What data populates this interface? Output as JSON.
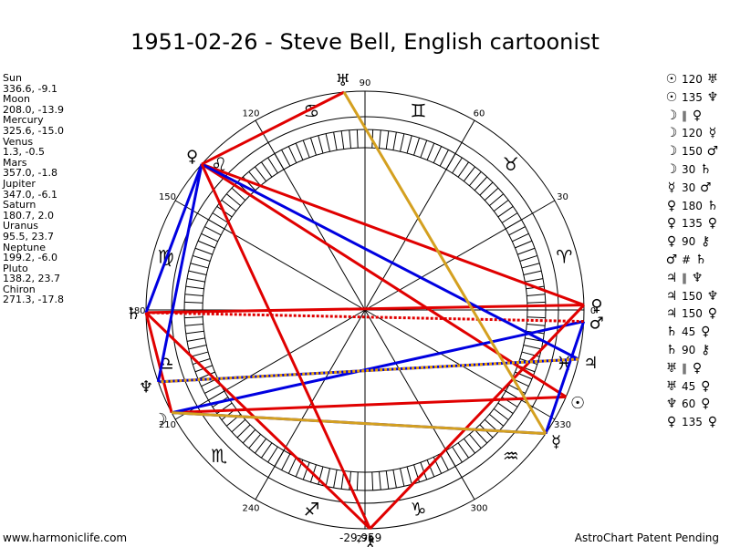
{
  "title": "1951-02-26 - Steve Bell, English cartoonist",
  "planets": [
    {
      "name": "Sun",
      "pos": "336.6, -9.1",
      "lon": 336.6,
      "glyph": "☉"
    },
    {
      "name": "Moon",
      "pos": "208.0, -13.9",
      "lon": 208.0,
      "glyph": "☽"
    },
    {
      "name": "Mercury",
      "pos": "325.6, -15.0",
      "lon": 325.6,
      "glyph": "☿"
    },
    {
      "name": "Venus",
      "pos": "1.3, -0.5",
      "lon": 1.3,
      "glyph": "♀"
    },
    {
      "name": "Mars",
      "pos": "357.0, -1.8",
      "lon": 357.0,
      "glyph": "♂"
    },
    {
      "name": "Jupiter",
      "pos": "347.0, -6.1",
      "lon": 347.0,
      "glyph": "♃"
    },
    {
      "name": "Saturn",
      "pos": "180.7, 2.0",
      "lon": 180.7,
      "glyph": "♄"
    },
    {
      "name": "Uranus",
      "pos": "95.5, 23.7",
      "lon": 95.5,
      "glyph": "♅"
    },
    {
      "name": "Neptune",
      "pos": "199.2, -6.0",
      "lon": 199.2,
      "glyph": "♆"
    },
    {
      "name": "Pluto",
      "pos": "138.2, 23.7",
      "lon": 138.2,
      "glyph": "♀"
    },
    {
      "name": "Chiron",
      "pos": "271.3, -17.8",
      "lon": 271.3,
      "glyph": "⚷"
    }
  ],
  "aspects": [
    {
      "p1": "☉",
      "angle": "120",
      "p2": "♅"
    },
    {
      "p1": "☉",
      "angle": "135",
      "p2": "♆"
    },
    {
      "p1": "☽",
      "angle": "∥",
      "p2": "♀"
    },
    {
      "p1": "☽",
      "angle": "120",
      "p2": "☿"
    },
    {
      "p1": "☽",
      "angle": "150",
      "p2": "♂"
    },
    {
      "p1": "☽",
      "angle": "30",
      "p2": "♄"
    },
    {
      "p1": "☿",
      "angle": "30",
      "p2": "♂"
    },
    {
      "p1": "♀",
      "angle": "180",
      "p2": "♄"
    },
    {
      "p1": "♀",
      "angle": "135",
      "p2": "♀"
    },
    {
      "p1": "♀",
      "angle": "90",
      "p2": "⚷"
    },
    {
      "p1": "♂",
      "angle": "#",
      "p2": "♄"
    },
    {
      "p1": "♃",
      "angle": "∥",
      "p2": "♆"
    },
    {
      "p1": "♃",
      "angle": "150",
      "p2": "♆"
    },
    {
      "p1": "♃",
      "angle": "150",
      "p2": "♀"
    },
    {
      "p1": "♄",
      "angle": "45",
      "p2": "♀"
    },
    {
      "p1": "♄",
      "angle": "90",
      "p2": "⚷"
    },
    {
      "p1": "♅",
      "angle": "∥",
      "p2": "♀"
    },
    {
      "p1": "♅",
      "angle": "45",
      "p2": "♀"
    },
    {
      "p1": "♆",
      "angle": "60",
      "p2": "♀"
    },
    {
      "p1": "♀",
      "angle": "135",
      "p2": "♀"
    }
  ],
  "degree_labels": [
    {
      "deg": 0,
      "text": "0"
    },
    {
      "deg": 30,
      "text": "30"
    },
    {
      "deg": 60,
      "text": "60"
    },
    {
      "deg": 90,
      "text": "90"
    },
    {
      "deg": 120,
      "text": "120"
    },
    {
      "deg": 150,
      "text": "150"
    },
    {
      "deg": 180,
      "text": "180"
    },
    {
      "deg": 210,
      "text": "210"
    },
    {
      "deg": 240,
      "text": "240"
    },
    {
      "deg": 270,
      "text": "270"
    },
    {
      "deg": 300,
      "text": "300"
    },
    {
      "deg": 330,
      "text": "330"
    }
  ],
  "zodiac_signs": [
    "♈",
    "♉",
    "♊",
    "♋",
    "♌",
    "♍",
    "♎",
    "♏",
    "♐",
    "♑",
    "♒",
    "♓"
  ],
  "chart_lines": [
    {
      "from": 336.6,
      "to": 208.0,
      "color": "#e00000"
    },
    {
      "from": 336.6,
      "to": 138.2,
      "color": "#e00000"
    },
    {
      "from": 208.0,
      "to": 325.6,
      "color": "#0000e0"
    },
    {
      "from": 208.0,
      "to": 357.0,
      "color": "#0000e0"
    },
    {
      "from": 208.0,
      "to": 180.7,
      "color": "#e00000"
    },
    {
      "from": 325.6,
      "to": 357.0,
      "color": "#0000e0"
    },
    {
      "from": 1.3,
      "to": 180.7,
      "color": "#e00000"
    },
    {
      "from": 1.3,
      "to": 138.2,
      "color": "#e00000"
    },
    {
      "from": 1.3,
      "to": 271.3,
      "color": "#e00000"
    },
    {
      "from": 357.0,
      "to": 180.7,
      "color": "#e00000",
      "dash": true
    },
    {
      "from": 347.0,
      "to": 199.2,
      "color": "#0000e0"
    },
    {
      "from": 347.0,
      "to": 138.2,
      "color": "#0000e0"
    },
    {
      "from": 347.0,
      "to": 199.2,
      "color": "#e8a000",
      "dash": true
    },
    {
      "from": 180.7,
      "to": 138.2,
      "color": "#0000e0"
    },
    {
      "from": 180.7,
      "to": 271.3,
      "color": "#e00000"
    },
    {
      "from": 95.5,
      "to": 138.2,
      "color": "#e00000"
    },
    {
      "from": 95.5,
      "to": 325.6,
      "color": "#d4a020"
    },
    {
      "from": 199.2,
      "to": 138.2,
      "color": "#0000e0"
    },
    {
      "from": 325.6,
      "to": 208.0,
      "color": "#d4a020"
    },
    {
      "from": 138.2,
      "to": 271.3,
      "color": "#e00000"
    }
  ],
  "footer": {
    "left": "www.harmoniclife.com",
    "center": "-29,959",
    "right": "AstroChart Patent Pending"
  },
  "colors": {
    "red": "#e00000",
    "blue": "#0000e0",
    "gold": "#d4a020"
  }
}
